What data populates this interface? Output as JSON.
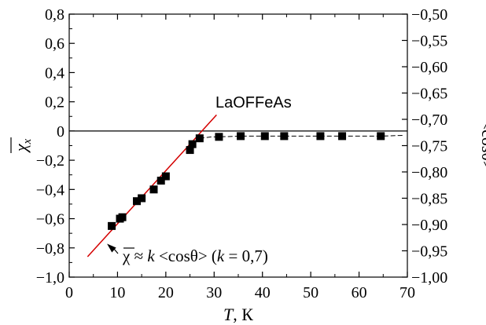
{
  "chart_data": {
    "type": "scatter",
    "title": "",
    "xlabel": {
      "var": "T",
      "unit": ", К"
    },
    "ylabel_left": "χx",
    "ylabel_right": "<cosθ>",
    "xlim": [
      0,
      70
    ],
    "ylim_left": [
      -1.0,
      0.8
    ],
    "ylim_right": [
      -1.0,
      -0.5
    ],
    "x_ticks": [
      "0",
      "10",
      "20",
      "30",
      "40",
      "50",
      "60",
      "70"
    ],
    "y_left_ticks": [
      "0,8",
      "0,6",
      "0,4",
      "0,2",
      "0",
      "−0,2",
      "−0,4",
      "−0,6",
      "−0,8",
      "−1,0"
    ],
    "y_right_ticks": [
      "−0,50",
      "−0,55",
      "−0,60",
      "−0,65",
      "−0,70",
      "−0,75",
      "−0,80",
      "−0,85",
      "−0,90",
      "−0,95",
      "−1,00"
    ],
    "grid": false,
    "material_label": "LaOFFeAs",
    "series": [
      {
        "marker": "square",
        "color": "#000000",
        "x": [
          8.8,
          10.5,
          11.0,
          14.0,
          15.0,
          17.5,
          19.0,
          20.0,
          25.0,
          25.5,
          27.0,
          31.0,
          35.5,
          40.5,
          44.5,
          52.0,
          56.5,
          64.5
        ],
        "y": [
          -0.65,
          -0.6,
          -0.59,
          -0.48,
          -0.46,
          -0.4,
          -0.34,
          -0.31,
          -0.13,
          -0.09,
          -0.05,
          -0.04,
          -0.035,
          -0.035,
          -0.035,
          -0.035,
          -0.035,
          -0.035
        ]
      }
    ],
    "connector_line": {
      "color": "#000000",
      "style": "dashed",
      "x": [
        27.0,
        29.5,
        31.0,
        35.5,
        40.5,
        44.5,
        52.0,
        56.5,
        64.5,
        69.0
      ],
      "y": [
        -0.05,
        -0.04,
        -0.04,
        -0.035,
        -0.035,
        -0.035,
        -0.035,
        -0.035,
        -0.035,
        -0.03
      ]
    },
    "fit_line": {
      "color": "#d40000",
      "x": [
        3.8,
        30.5
      ],
      "y": [
        -0.86,
        0.11
      ]
    },
    "zero_line_y": 0,
    "annotation": {
      "formula_prefix": "χ ≈ ",
      "formula_k": "k",
      "formula_middle": " <cosθ> (",
      "formula_k2": "k",
      "formula_suffix": " = 0,7)",
      "arrow_to": {
        "x": 6.2,
        "y": -0.75
      }
    }
  }
}
